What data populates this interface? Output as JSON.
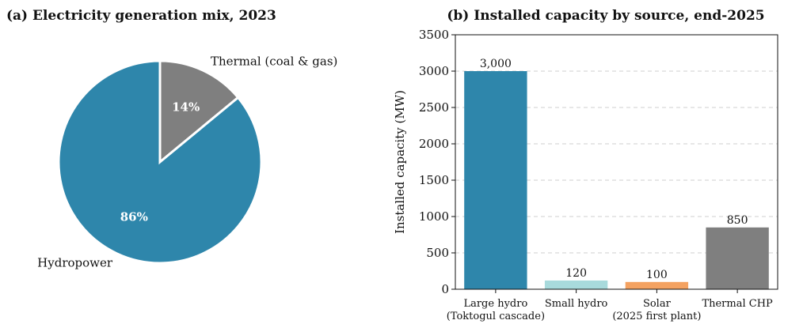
{
  "chart_data": [
    {
      "type": "pie",
      "title": "(a) Electricity generation mix, 2023",
      "slices": [
        {
          "label": "Thermal (coal & gas)",
          "value": 14,
          "pct_label": "14%",
          "color": "#7f7f7f"
        },
        {
          "label": "Hydropower",
          "value": 86,
          "pct_label": "86%",
          "color": "#2e86ab"
        }
      ],
      "start": "12 o'clock",
      "direction": "clockwise"
    },
    {
      "type": "bar",
      "title": "(b) Installed capacity by source, end-2025",
      "ylabel": "Installed capacity (MW)",
      "ylim": [
        0,
        3500
      ],
      "yticks": [
        "0",
        "500",
        "1000",
        "1500",
        "2000",
        "2500",
        "3000",
        "3500"
      ],
      "grid": "y, dashed",
      "categories": [
        {
          "lines": [
            "Large hydro",
            "(Toktogul cascade)"
          ]
        },
        {
          "lines": [
            "Small hydro"
          ]
        },
        {
          "lines": [
            "Solar",
            "(2025 first plant)"
          ]
        },
        {
          "lines": [
            "Thermal CHP"
          ]
        }
      ],
      "values": [
        3000,
        120,
        100,
        850
      ],
      "value_labels": [
        "3,000",
        "120",
        "100",
        "850"
      ],
      "colors": [
        "#2e86ab",
        "#a8dadc",
        "#f4a261",
        "#7f7f7f"
      ]
    }
  ]
}
